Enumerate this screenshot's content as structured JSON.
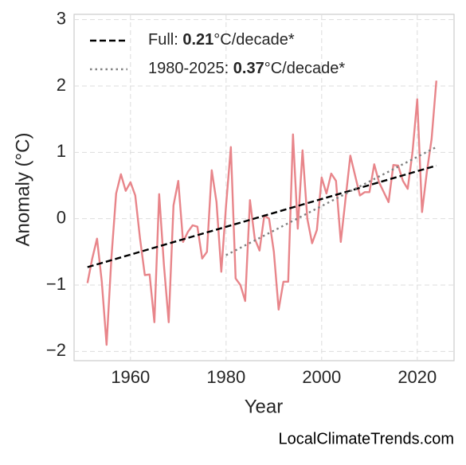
{
  "chart_data": {
    "type": "line",
    "x_label": "Year",
    "y_label": "Anomaly (°C)",
    "source": "LocalClimateTrends.com",
    "x": [
      1951,
      1952,
      1953,
      1954,
      1955,
      1956,
      1957,
      1958,
      1959,
      1960,
      1961,
      1962,
      1963,
      1964,
      1965,
      1966,
      1967,
      1968,
      1969,
      1970,
      1971,
      1972,
      1973,
      1974,
      1975,
      1976,
      1977,
      1978,
      1979,
      1980,
      1981,
      1982,
      1983,
      1984,
      1985,
      1986,
      1987,
      1988,
      1989,
      1990,
      1991,
      1992,
      1993,
      1994,
      1995,
      1996,
      1997,
      1998,
      1999,
      2000,
      2001,
      2002,
      2003,
      2004,
      2005,
      2006,
      2007,
      2008,
      2009,
      2010,
      2011,
      2012,
      2013,
      2014,
      2015,
      2016,
      2017,
      2018,
      2019,
      2020,
      2021,
      2022,
      2023,
      2024
    ],
    "series": [
      {
        "color": "#e8858a",
        "values": [
          -0.97,
          -0.6,
          -0.3,
          -0.95,
          -1.9,
          -0.6,
          0.38,
          0.67,
          0.42,
          0.55,
          0.35,
          -0.3,
          -0.85,
          -0.84,
          -1.56,
          0.37,
          -0.7,
          -1.56,
          0.2,
          0.57,
          -0.35,
          -0.2,
          -0.1,
          -0.12,
          -0.6,
          -0.5,
          0.73,
          0.25,
          -0.8,
          0.2,
          1.08,
          -0.9,
          -1.0,
          -1.24,
          0.28,
          -0.3,
          -0.48,
          0.05,
          0.0,
          -0.5,
          -1.37,
          -0.95,
          -0.95,
          1.27,
          -0.15,
          1.03,
          0.0,
          -0.37,
          -0.17,
          0.62,
          0.38,
          0.68,
          0.57,
          -0.35,
          0.3,
          0.95,
          0.65,
          0.35,
          0.4,
          0.4,
          0.82,
          0.55,
          0.4,
          0.25,
          0.81,
          0.8,
          0.57,
          0.45,
          1.0,
          1.8,
          0.1,
          0.7,
          1.2,
          2.08
        ]
      }
    ],
    "trends": [
      {
        "name": "Full: 0.21°C/decade*",
        "bold": "0.21",
        "color": "#000000",
        "style": "dashed",
        "x": [
          1951,
          2024
        ],
        "values": [
          -0.73,
          0.8
        ]
      },
      {
        "name": "1980-2025: 0.37°C/decade*",
        "bold": "0.37",
        "color": "#808080",
        "style": "dotted",
        "x": [
          1980,
          2024
        ],
        "values": [
          -0.55,
          1.08
        ]
      }
    ],
    "xlim": [
      1948.2,
      2027.7
    ],
    "ylim": [
      -2.14,
      3.08
    ],
    "xticks": [
      1960,
      1980,
      2000,
      2020
    ],
    "yticks": [
      {
        "value": -2,
        "label": "−2"
      },
      {
        "value": -1,
        "label": "−1"
      },
      0,
      1,
      2,
      3
    ],
    "grid": true,
    "legend": "upper left"
  }
}
